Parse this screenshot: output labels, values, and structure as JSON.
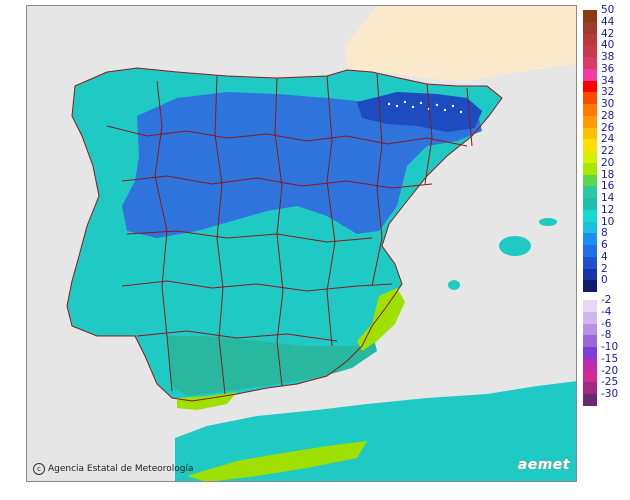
{
  "map": {
    "credit_text": "Agencia Estatal de Meteorología",
    "credit_icon": "copyright-icon",
    "logo_text": "aemet"
  },
  "legend": {
    "positive": [
      {
        "label": "50",
        "color": "#8b3a12"
      },
      {
        "label": "44",
        "color": "#a03a2a"
      },
      {
        "label": "42",
        "color": "#b83a3a"
      },
      {
        "label": "40",
        "color": "#c83a4a"
      },
      {
        "label": "38",
        "color": "#d93c6a"
      },
      {
        "label": "36",
        "color": "#f23ca0"
      },
      {
        "label": "34",
        "color": "#ff0000"
      },
      {
        "label": "32",
        "color": "#ff4a00"
      },
      {
        "label": "30",
        "color": "#ff7a00"
      },
      {
        "label": "28",
        "color": "#ff9a00"
      },
      {
        "label": "26",
        "color": "#ffc000"
      },
      {
        "label": "24",
        "color": "#ffe000"
      },
      {
        "label": "22",
        "color": "#d8f000"
      },
      {
        "label": "20",
        "color": "#a8e800"
      },
      {
        "label": "18",
        "color": "#5ad84a"
      },
      {
        "label": "16",
        "color": "#30c8a0"
      },
      {
        "label": "14",
        "color": "#20c0b0"
      },
      {
        "label": "12",
        "color": "#18d8d0"
      },
      {
        "label": "10",
        "color": "#18c0e8"
      },
      {
        "label": "8",
        "color": "#1a90f0"
      },
      {
        "label": "6",
        "color": "#2070e8"
      },
      {
        "label": "4",
        "color": "#2050d0"
      },
      {
        "label": "2",
        "color": "#1a34a8"
      },
      {
        "label": "0",
        "color": "#101a70"
      }
    ],
    "negative": [
      {
        "label": "-2",
        "color": "#e6d8f4"
      },
      {
        "label": "-4",
        "color": "#d0b8ec"
      },
      {
        "label": "-6",
        "color": "#b890e4"
      },
      {
        "label": "-8",
        "color": "#9a68dc"
      },
      {
        "label": "-10",
        "color": "#7f3cd8"
      },
      {
        "label": "-15",
        "color": "#c02ab0"
      },
      {
        "label": "-20",
        "color": "#d42a90"
      },
      {
        "label": "-25",
        "color": "#a02a80"
      },
      {
        "label": "-30",
        "color": "#6a2a70"
      }
    ]
  },
  "colors": {
    "sea": "#e6e6e6",
    "foreign_land": "#fbe9cc",
    "land_base": "#1fc9c4",
    "land_warm": "#28b8a0",
    "cold_core": "#2f74dc",
    "cold_deep": "#1d4cc0",
    "coast_warm": "#a0e000",
    "border": "#8a1a1a"
  }
}
